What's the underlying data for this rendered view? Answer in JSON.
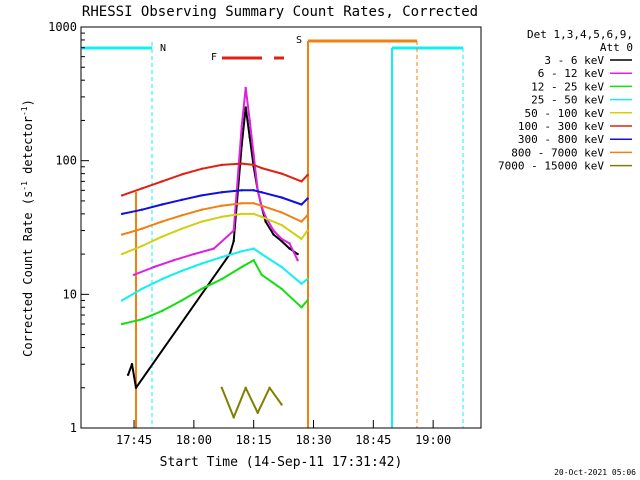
{
  "title": "RHESSI Observing Summary Count Rates, Corrected",
  "footer_timestamp": "20-Oct-2021 05:06",
  "chart_data": {
    "type": "line",
    "xlabel": "Start Time (14-Sep-11 17:31:42)",
    "ylabel_parts": [
      "Corrected Count Rate (s",
      "-1",
      " detector",
      "-1",
      ")"
    ],
    "ylog": true,
    "ylim": [
      1,
      1000
    ],
    "xlim": [
      "17:31:42",
      "19:12:00"
    ],
    "x_ticks": [
      "17:45",
      "18:00",
      "18:15",
      "18:30",
      "18:45",
      "19:00"
    ],
    "y_ticks": [
      "1",
      "10",
      "100",
      "1000"
    ],
    "legend": {
      "header": [
        "Det 1,3,4,5,6,9,",
        "Att 0"
      ],
      "entries": [
        {
          "label": "3 - 6 keV",
          "color": "#000000"
        },
        {
          "label": "6 - 12 keV",
          "color": "#e020e0"
        },
        {
          "label": "12 - 25 keV",
          "color": "#10e010"
        },
        {
          "label": "25 - 50 keV",
          "color": "#10f0f0"
        },
        {
          "label": "50 - 100 keV",
          "color": "#d0d010"
        },
        {
          "label": "100 - 300 keV",
          "color": "#e02010"
        },
        {
          "label": "300 - 800 keV",
          "color": "#1010e0"
        },
        {
          "label": "800 - 7000 keV",
          "color": "#f08010"
        },
        {
          "label": "7000 - 15000 keV",
          "color": "#808000"
        }
      ]
    },
    "annotations": [
      {
        "label": "N",
        "color": "#10f0f0"
      },
      {
        "label": "S",
        "color": "#f08010"
      },
      {
        "label": "F",
        "color": "#e02010"
      }
    ],
    "series": [
      {
        "name": "3 - 6 keV",
        "x": [
          "17:43:30",
          "17:44:30",
          "17:45:30",
          "18:09:00",
          "18:10:00",
          "18:12:00",
          "18:13:00",
          "18:14:00",
          "18:15:00",
          "18:16:00",
          "18:17:00",
          "18:18:00",
          "18:20:00",
          "18:22:00",
          "18:24:00",
          "18:26:00"
        ],
        "y": [
          2.5,
          3.0,
          2.0,
          20,
          25,
          130,
          250,
          150,
          90,
          60,
          45,
          35,
          28,
          25,
          22,
          20
        ]
      },
      {
        "name": "6 - 12 keV",
        "x": [
          "17:45:00",
          "17:50:00",
          "17:55:00",
          "18:00:00",
          "18:05:00",
          "18:10:00",
          "18:12:00",
          "18:13:00",
          "18:14:00",
          "18:15:00",
          "18:16:00",
          "18:17:00",
          "18:18:00",
          "18:20:00",
          "18:22:00",
          "18:24:00",
          "18:26:00"
        ],
        "y": [
          14,
          16,
          18,
          20,
          22,
          30,
          180,
          350,
          200,
          110,
          60,
          45,
          38,
          30,
          26,
          24,
          18
        ]
      },
      {
        "name": "12 - 25 keV",
        "x": [
          "17:42:00",
          "17:47:00",
          "17:52:00",
          "17:57:00",
          "18:02:00",
          "18:07:00",
          "18:12:00",
          "18:15:00",
          "18:17:00",
          "18:22:00",
          "18:27:00",
          "18:28:30"
        ],
        "y": [
          6,
          6.5,
          7.5,
          9,
          11,
          13,
          16,
          18,
          14,
          11,
          8,
          9
        ]
      },
      {
        "name": "25 - 50 keV",
        "x": [
          "17:42:00",
          "17:47:00",
          "17:52:00",
          "17:57:00",
          "18:02:00",
          "18:07:00",
          "18:12:00",
          "18:15:00",
          "18:17:00",
          "18:22:00",
          "18:27:00",
          "18:28:30"
        ],
        "y": [
          9,
          11,
          13,
          15,
          17,
          19,
          21,
          22,
          20,
          16,
          12,
          13
        ]
      },
      {
        "name": "50 - 100 keV",
        "x": [
          "17:42:00",
          "17:47:00",
          "17:52:00",
          "17:57:00",
          "18:02:00",
          "18:07:00",
          "18:12:00",
          "18:15:00",
          "18:17:00",
          "18:22:00",
          "18:27:00",
          "18:28:30"
        ],
        "y": [
          20,
          23,
          27,
          31,
          35,
          38,
          40,
          40,
          38,
          33,
          26,
          30
        ]
      },
      {
        "name": "100 - 300 keV",
        "x": [
          "17:42:00",
          "17:47:00",
          "17:52:00",
          "17:57:00",
          "18:02:00",
          "18:07:00",
          "18:12:00",
          "18:15:00",
          "18:17:00",
          "18:22:00",
          "18:27:00",
          "18:28:30"
        ],
        "y": [
          55,
          62,
          70,
          79,
          87,
          93,
          95,
          93,
          88,
          80,
          70,
          78
        ]
      },
      {
        "name": "300 - 800 keV",
        "x": [
          "17:42:00",
          "17:47:00",
          "17:52:00",
          "17:57:00",
          "18:02:00",
          "18:07:00",
          "18:12:00",
          "18:15:00",
          "18:17:00",
          "18:22:00",
          "18:27:00",
          "18:28:30"
        ],
        "y": [
          40,
          43,
          47,
          51,
          55,
          58,
          60,
          60,
          58,
          53,
          47,
          52
        ]
      },
      {
        "name": "800 - 7000 keV",
        "x": [
          "17:42:00",
          "17:47:00",
          "17:52:00",
          "17:57:00",
          "18:02:00",
          "18:07:00",
          "18:12:00",
          "18:15:00",
          "18:17:00",
          "18:22:00",
          "18:27:00",
          "18:28:30"
        ],
        "y": [
          28,
          31,
          35,
          39,
          43,
          46,
          48,
          48,
          46,
          41,
          35,
          39
        ]
      },
      {
        "name": "7000 - 15000 keV",
        "x": [
          "18:07:00",
          "18:10:00",
          "18:13:00",
          "18:16:00",
          "18:19:00",
          "18:22:00"
        ],
        "y": [
          2,
          1.2,
          2,
          1.3,
          2,
          1.5
        ]
      }
    ]
  }
}
